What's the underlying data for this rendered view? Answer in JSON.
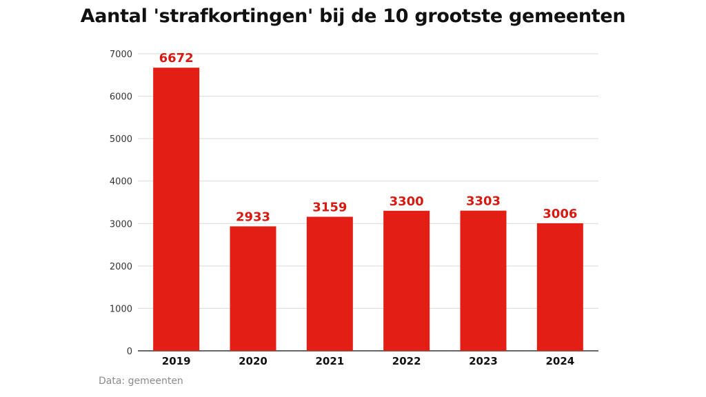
{
  "header": {
    "title": "Aantal 'strafkortingen' bij de 10 grootste gemeenten"
  },
  "footer": {
    "source": "Data: gemeenten"
  },
  "colors": {
    "bar": "#e31e14",
    "label": "#d61a12",
    "grid": "#d9d9d9",
    "axis": "#333333"
  },
  "chart_data": {
    "type": "bar",
    "title": "Aantal 'strafkortingen' bij de 10 grootste gemeenten",
    "xlabel": "",
    "ylabel": "",
    "categories": [
      "2019",
      "2020",
      "2021",
      "2022",
      "2023",
      "2024"
    ],
    "values": [
      6672,
      2933,
      3159,
      3300,
      3303,
      3006
    ],
    "ylim": [
      0,
      7000
    ],
    "yticks": [
      0,
      1000,
      2000,
      3000,
      4000,
      5000,
      6000,
      7000
    ],
    "grid": true,
    "data_labels": true
  }
}
